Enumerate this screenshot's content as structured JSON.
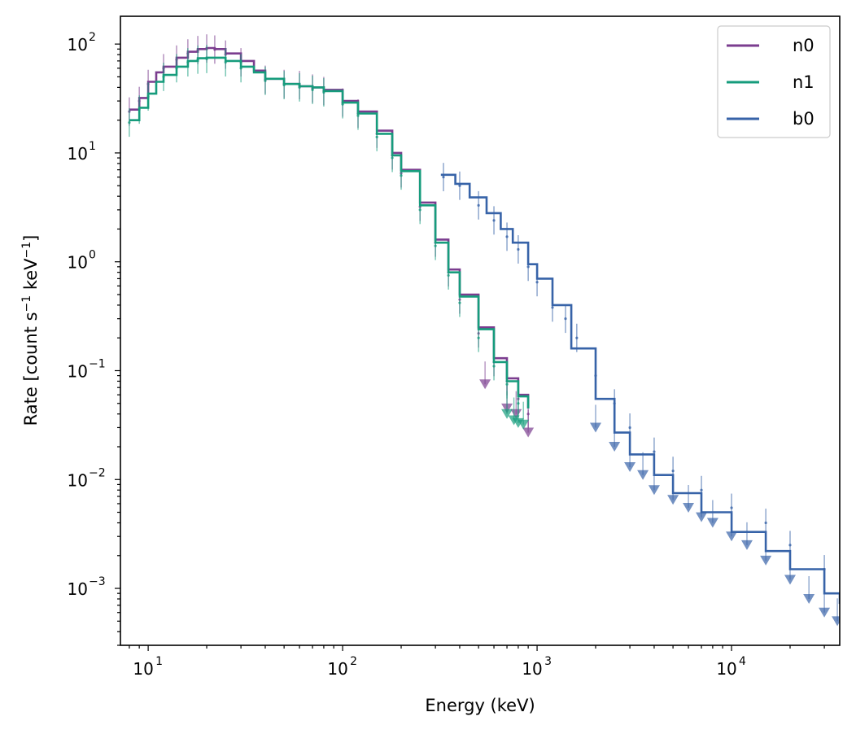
{
  "chart_data": {
    "type": "line",
    "title": "",
    "xlabel": "Energy (keV)",
    "ylabel_parts": [
      "Rate [count s",
      "−1",
      " keV",
      "−1",
      "]"
    ],
    "xscale": "log",
    "yscale": "log",
    "xlim": [
      7.2,
      36000
    ],
    "ylim": [
      0.0003,
      180
    ],
    "xticks": [
      10,
      100,
      1000,
      10000
    ],
    "xtick_labels": [
      "10",
      "10",
      "10",
      "10"
    ],
    "xtick_exponents": [
      "1",
      "2",
      "3",
      "4"
    ],
    "yticks": [
      0.001,
      0.01,
      0.1,
      1,
      10,
      100
    ],
    "ytick_labels": [
      "10",
      "10",
      "10",
      "10",
      "10",
      "10"
    ],
    "ytick_exponents": [
      "−3",
      "−2",
      "−1",
      "0",
      "1",
      "2"
    ],
    "grid": false,
    "legend_position": "top-right",
    "series": [
      {
        "name": "n0",
        "color": "#7b3d8f",
        "model": [
          [
            8,
            25
          ],
          [
            9,
            32
          ],
          [
            10,
            45
          ],
          [
            11,
            55
          ],
          [
            12,
            62
          ],
          [
            14,
            75
          ],
          [
            16,
            85
          ],
          [
            18,
            90
          ],
          [
            20,
            92
          ],
          [
            22,
            90
          ],
          [
            25,
            82
          ],
          [
            30,
            70
          ],
          [
            35,
            57
          ],
          [
            40,
            48
          ],
          [
            50,
            43
          ],
          [
            60,
            41
          ],
          [
            70,
            40
          ],
          [
            80,
            38
          ],
          [
            100,
            30
          ],
          [
            120,
            24
          ],
          [
            150,
            16
          ],
          [
            180,
            10
          ],
          [
            200,
            7
          ],
          [
            250,
            3.5
          ],
          [
            300,
            1.6
          ],
          [
            350,
            0.85
          ],
          [
            400,
            0.5
          ],
          [
            500,
            0.25
          ],
          [
            600,
            0.13
          ],
          [
            700,
            0.085
          ],
          [
            800,
            0.06
          ],
          [
            900,
            0.045
          ]
        ],
        "points": [
          [
            8,
            24
          ],
          [
            9,
            30
          ],
          [
            10,
            43
          ],
          [
            12,
            60
          ],
          [
            14,
            72
          ],
          [
            16,
            82
          ],
          [
            18,
            88
          ],
          [
            20,
            91
          ],
          [
            22,
            89
          ],
          [
            25,
            80
          ],
          [
            30,
            68
          ],
          [
            40,
            47
          ],
          [
            50,
            43
          ],
          [
            60,
            42
          ],
          [
            70,
            39
          ],
          [
            80,
            37
          ],
          [
            100,
            29
          ],
          [
            120,
            23
          ],
          [
            150,
            15
          ],
          [
            180,
            9.5
          ],
          [
            200,
            6.5
          ],
          [
            250,
            3.2
          ],
          [
            300,
            1.5
          ],
          [
            350,
            0.8
          ],
          [
            400,
            0.45
          ],
          [
            500,
            0.22
          ],
          [
            600,
            0.12
          ],
          [
            700,
            0.08
          ],
          [
            800,
            0.055
          ],
          [
            900,
            0.04
          ]
        ],
        "upper_limits": [
          [
            540,
            0.075
          ],
          [
            700,
            0.045
          ],
          [
            780,
            0.04
          ],
          [
            900,
            0.027
          ]
        ]
      },
      {
        "name": "n1",
        "color": "#169c7c",
        "model": [
          [
            8,
            20
          ],
          [
            9,
            26
          ],
          [
            10,
            35
          ],
          [
            11,
            45
          ],
          [
            12,
            52
          ],
          [
            14,
            62
          ],
          [
            16,
            70
          ],
          [
            18,
            74
          ],
          [
            20,
            75
          ],
          [
            25,
            70
          ],
          [
            30,
            62
          ],
          [
            35,
            55
          ],
          [
            40,
            48
          ],
          [
            50,
            43
          ],
          [
            60,
            41
          ],
          [
            70,
            40
          ],
          [
            80,
            37
          ],
          [
            100,
            29
          ],
          [
            120,
            23
          ],
          [
            150,
            15
          ],
          [
            180,
            9.5
          ],
          [
            200,
            6.8
          ],
          [
            250,
            3.3
          ],
          [
            300,
            1.5
          ],
          [
            350,
            0.8
          ],
          [
            400,
            0.48
          ],
          [
            500,
            0.24
          ],
          [
            600,
            0.12
          ],
          [
            700,
            0.08
          ],
          [
            800,
            0.058
          ],
          [
            900,
            0.045
          ]
        ],
        "points": [
          [
            8,
            19
          ],
          [
            9,
            25
          ],
          [
            10,
            33
          ],
          [
            12,
            50
          ],
          [
            14,
            60
          ],
          [
            16,
            68
          ],
          [
            18,
            72
          ],
          [
            20,
            73
          ],
          [
            25,
            68
          ],
          [
            30,
            60
          ],
          [
            40,
            46
          ],
          [
            50,
            42
          ],
          [
            60,
            40
          ],
          [
            70,
            38
          ],
          [
            80,
            36
          ],
          [
            100,
            28
          ],
          [
            120,
            22
          ],
          [
            150,
            14
          ],
          [
            180,
            9
          ],
          [
            200,
            6.2
          ],
          [
            250,
            3
          ],
          [
            300,
            1.4
          ],
          [
            350,
            0.75
          ],
          [
            400,
            0.42
          ],
          [
            500,
            0.2
          ],
          [
            600,
            0.11
          ],
          [
            700,
            0.075
          ],
          [
            800,
            0.05
          ]
        ],
        "upper_limits": [
          [
            700,
            0.04
          ],
          [
            760,
            0.035
          ],
          [
            800,
            0.033
          ],
          [
            850,
            0.032
          ]
        ]
      },
      {
        "name": "b0",
        "color": "#3763a8",
        "model": [
          [
            320,
            6.3
          ],
          [
            380,
            5.2
          ],
          [
            450,
            3.9
          ],
          [
            550,
            2.8
          ],
          [
            650,
            2.0
          ],
          [
            750,
            1.5
          ],
          [
            900,
            0.95
          ],
          [
            1000,
            0.7
          ],
          [
            1200,
            0.4
          ],
          [
            1500,
            0.16
          ],
          [
            2000,
            0.055
          ],
          [
            2500,
            0.027
          ],
          [
            3000,
            0.017
          ],
          [
            4000,
            0.011
          ],
          [
            5000,
            0.0075
          ],
          [
            7000,
            0.005
          ],
          [
            10000,
            0.0033
          ],
          [
            15000,
            0.0022
          ],
          [
            20000,
            0.0015
          ],
          [
            30000,
            0.0009
          ],
          [
            36000,
            0.00072
          ]
        ],
        "points": [
          [
            330,
            6
          ],
          [
            400,
            5
          ],
          [
            500,
            3.3
          ],
          [
            600,
            2.4
          ],
          [
            700,
            1.7
          ],
          [
            800,
            1.3
          ],
          [
            900,
            0.9
          ],
          [
            1000,
            0.65
          ],
          [
            1200,
            0.38
          ],
          [
            1400,
            0.3
          ],
          [
            1600,
            0.2
          ],
          [
            2000,
            0.09
          ],
          [
            2500,
            0.05
          ],
          [
            3000,
            0.03
          ],
          [
            4000,
            0.018
          ],
          [
            5000,
            0.012
          ],
          [
            7000,
            0.008
          ],
          [
            10000,
            0.0055
          ],
          [
            15000,
            0.004
          ],
          [
            20000,
            0.0025
          ],
          [
            30000,
            0.0015
          ]
        ],
        "upper_limits": [
          [
            2000,
            0.03
          ],
          [
            2500,
            0.02
          ],
          [
            3000,
            0.013
          ],
          [
            3500,
            0.011
          ],
          [
            4000,
            0.008
          ],
          [
            5000,
            0.0065
          ],
          [
            6000,
            0.0055
          ],
          [
            7000,
            0.0045
          ],
          [
            8000,
            0.004
          ],
          [
            10000,
            0.003
          ],
          [
            12000,
            0.0025
          ],
          [
            15000,
            0.0018
          ],
          [
            20000,
            0.0012
          ],
          [
            25000,
            0.0008
          ],
          [
            30000,
            0.0006
          ],
          [
            35000,
            0.0005
          ]
        ]
      }
    ]
  }
}
